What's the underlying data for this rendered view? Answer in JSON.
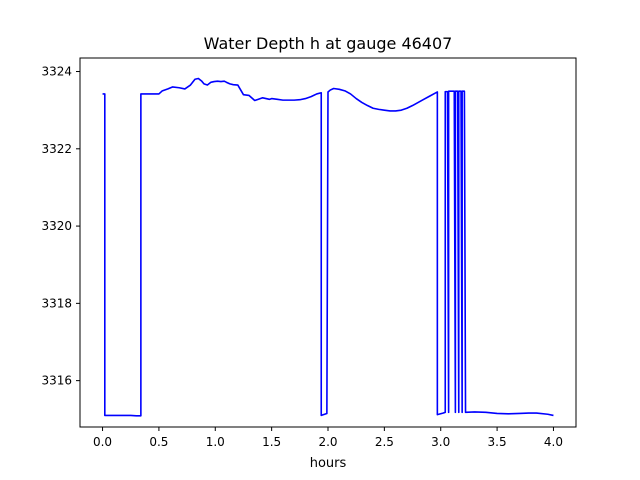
{
  "chart_data": {
    "type": "line",
    "title": "Water Depth h at gauge 46407",
    "xlabel": "hours",
    "ylabel": "",
    "xlim": [
      -0.2,
      4.2
    ],
    "ylim": [
      3314.8,
      3324.35
    ],
    "xticks": [
      0.0,
      0.5,
      1.0,
      1.5,
      2.0,
      2.5,
      3.0,
      3.5,
      4.0
    ],
    "xtick_labels": [
      "0.0",
      "0.5",
      "1.0",
      "1.5",
      "2.0",
      "2.5",
      "3.0",
      "3.5",
      "4.0"
    ],
    "yticks": [
      3316,
      3318,
      3320,
      3322,
      3324
    ],
    "ytick_labels": [
      "3316",
      "3318",
      "3320",
      "3322",
      "3324"
    ],
    "grid": false,
    "series": [
      {
        "color": "#0000ff",
        "x": [
          0.0,
          0.02,
          0.02,
          0.05,
          0.1,
          0.15,
          0.2,
          0.25,
          0.3,
          0.34,
          0.34,
          0.4,
          0.5,
          0.53,
          0.58,
          0.62,
          0.68,
          0.73,
          0.78,
          0.82,
          0.85,
          0.88,
          0.9,
          0.93,
          0.96,
          0.99,
          1.02,
          1.05,
          1.08,
          1.1,
          1.13,
          1.16,
          1.2,
          1.25,
          1.3,
          1.35,
          1.38,
          1.42,
          1.45,
          1.48,
          1.5,
          1.55,
          1.6,
          1.65,
          1.7,
          1.75,
          1.8,
          1.85,
          1.9,
          1.94,
          1.94,
          1.98,
          1.99,
          2.0,
          2.02,
          2.05,
          2.1,
          2.15,
          2.2,
          2.25,
          2.3,
          2.35,
          2.4,
          2.45,
          2.5,
          2.55,
          2.6,
          2.65,
          2.7,
          2.75,
          2.8,
          2.85,
          2.9,
          2.95,
          2.97,
          2.97,
          3.02,
          3.04,
          3.04,
          3.06,
          3.07,
          3.07,
          3.12,
          3.13,
          3.13,
          3.15,
          3.16,
          3.16,
          3.18,
          3.19,
          3.19,
          3.21,
          3.22,
          3.22,
          3.3,
          3.4,
          3.5,
          3.6,
          3.7,
          3.78,
          3.85,
          3.95,
          4.0
        ],
        "y": [
          3323.42,
          3323.42,
          3315.1,
          3315.1,
          3315.1,
          3315.1,
          3315.1,
          3315.1,
          3315.09,
          3315.09,
          3323.42,
          3323.42,
          3323.42,
          3323.5,
          3323.55,
          3323.6,
          3323.58,
          3323.55,
          3323.65,
          3323.8,
          3323.82,
          3323.75,
          3323.68,
          3323.65,
          3323.72,
          3323.74,
          3323.75,
          3323.74,
          3323.75,
          3323.72,
          3323.68,
          3323.66,
          3323.65,
          3323.4,
          3323.38,
          3323.25,
          3323.28,
          3323.32,
          3323.3,
          3323.28,
          3323.3,
          3323.28,
          3323.26,
          3323.26,
          3323.26,
          3323.27,
          3323.3,
          3323.35,
          3323.42,
          3323.45,
          3315.1,
          3315.14,
          3315.15,
          3323.47,
          3323.52,
          3323.56,
          3323.54,
          3323.5,
          3323.42,
          3323.3,
          3323.2,
          3323.12,
          3323.05,
          3323.02,
          3323.0,
          3322.98,
          3322.98,
          3323.0,
          3323.05,
          3323.12,
          3323.2,
          3323.28,
          3323.36,
          3323.44,
          3323.47,
          3315.12,
          3315.16,
          3315.18,
          3323.48,
          3323.48,
          3315.18,
          3323.49,
          3323.49,
          3315.18,
          3323.49,
          3323.49,
          3315.18,
          3323.49,
          3323.49,
          3315.18,
          3323.49,
          3323.49,
          3315.18,
          3315.18,
          3315.19,
          3315.18,
          3315.15,
          3315.14,
          3315.15,
          3315.16,
          3315.16,
          3315.13,
          3315.1
        ]
      }
    ]
  }
}
